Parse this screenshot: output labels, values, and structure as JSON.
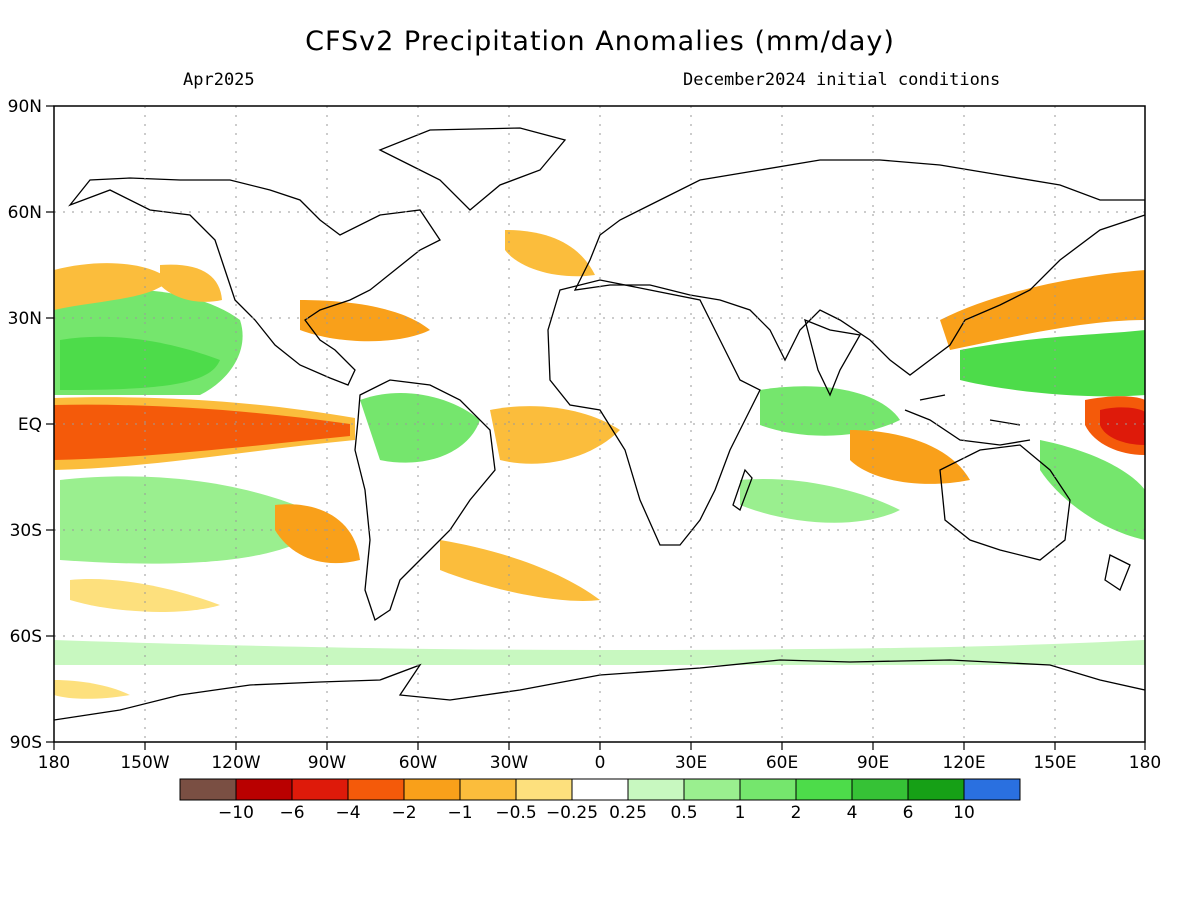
{
  "title": "CFSv2 Precipitation Anomalies (mm/day)",
  "subtitle_left": "Apr2025",
  "subtitle_right": "December2024 initial conditions",
  "lon_ticks": [
    "180",
    "150W",
    "120W",
    "90W",
    "60W",
    "30W",
    "0",
    "30E",
    "60E",
    "90E",
    "120E",
    "150E",
    "180"
  ],
  "lat_ticks": [
    "90N",
    "60N",
    "30N",
    "EQ",
    "30S",
    "60S",
    "90S"
  ],
  "colorbar": {
    "colors": [
      "#7a4f43",
      "#b90000",
      "#de1a0a",
      "#f45a0a",
      "#f9a01a",
      "#fbbd3c",
      "#fde07d",
      "#ffffff",
      "#c8f8c0",
      "#9aef8f",
      "#75e66d",
      "#4ddc4a",
      "#36c236",
      "#16a016",
      "#2a70e0"
    ],
    "labels": [
      "−10",
      "−6",
      "−4",
      "−2",
      "−1",
      "−0.5",
      "−0.25",
      "0.25",
      "0.5",
      "1",
      "2",
      "4",
      "6",
      "10"
    ]
  }
}
